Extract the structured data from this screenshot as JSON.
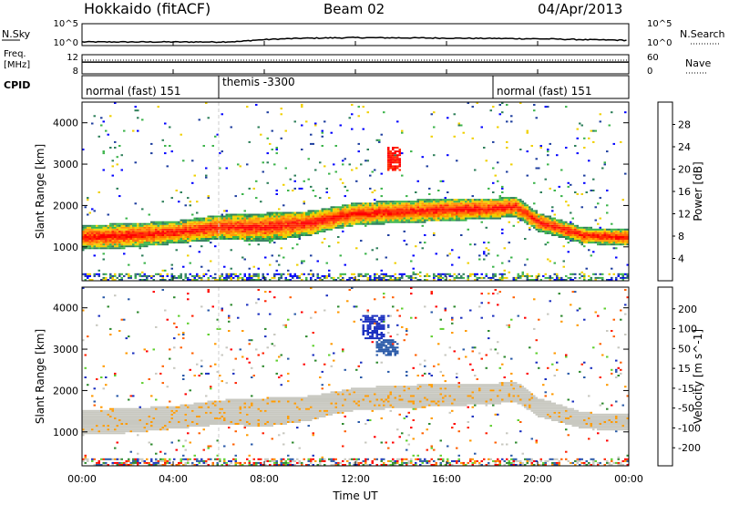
{
  "header": {
    "station": "Hokkaido (fitACF)",
    "beam": "Beam 02",
    "date": "04/Apr/2013"
  },
  "noise_panel": {
    "left_label": "N.Sky",
    "right_label": "N.Search",
    "left_ticks": [
      "10^5",
      "10^0"
    ],
    "right_ticks": [
      "10^5",
      "10^0"
    ]
  },
  "freq_panel": {
    "left_label_line1": "Freq.",
    "left_label_line2": "[MHz]",
    "left_ticks": [
      "12",
      "8"
    ],
    "right_label": "Nave",
    "right_ticks": [
      "60",
      "0"
    ]
  },
  "cpid_panel": {
    "label": "CPID",
    "modes": [
      "normal (fast) 151",
      "themis -3300",
      "normal (fast) 151"
    ]
  },
  "colors": {
    "power_scale": [
      "#0000ff",
      "#1f3f9f",
      "#2e7f5a",
      "#3cb44b",
      "#f0d000",
      "#ff9a00",
      "#ff6a00",
      "#ff2a00",
      "#ff0000"
    ],
    "velocity_scale": [
      "#1a2fbf",
      "#2a5aa8",
      "#2f8a2f",
      "#5fcf2f",
      "#c8c8c0",
      "#c8c8c0",
      "#ff9a00",
      "#ff6000",
      "#ff2000",
      "#ff0000"
    ],
    "ground_scatter": "#c8c8c0"
  },
  "chart_data": [
    {
      "type": "line",
      "title": "N.Sky / N.Search",
      "y_scale": "log",
      "ylim": [
        1,
        100000
      ],
      "xlim_hours": [
        0,
        24
      ],
      "series": [
        {
          "name": "N.Sky",
          "x": [
            0,
            2,
            4,
            6,
            7,
            8,
            10,
            12,
            14,
            16,
            18,
            20,
            22,
            24
          ],
          "y": [
            3,
            3,
            3,
            3,
            4,
            12,
            30,
            40,
            35,
            30,
            25,
            20,
            12,
            8
          ]
        }
      ]
    },
    {
      "type": "line",
      "title": "Freq. / Nave",
      "ylim": [
        8,
        12
      ],
      "xlim_hours": [
        0,
        24
      ],
      "series": [
        {
          "name": "Freq.",
          "x": [
            0,
            24
          ],
          "y": [
            10.5,
            10.5
          ]
        }
      ]
    },
    {
      "type": "heatmap",
      "ylabel": "Slant Range [km]",
      "colorbar_label": "Power [dB]",
      "colorbar_ticks": [
        4,
        8,
        12,
        16,
        20,
        24,
        28
      ],
      "colorbar_range": [
        0,
        32
      ],
      "ylim": [
        180,
        4500
      ],
      "yticks": [
        1000,
        2000,
        3000,
        4000
      ],
      "xlim_hours": [
        0,
        24
      ],
      "echo_band": {
        "x": [
          0,
          2,
          4,
          6,
          8,
          10,
          11,
          12,
          14,
          16,
          18,
          19,
          20,
          22,
          24
        ],
        "lower_km": [
          900,
          950,
          1050,
          1150,
          1100,
          1250,
          1400,
          1500,
          1550,
          1600,
          1650,
          1700,
          1350,
          1050,
          1000
        ],
        "upper_km": [
          1500,
          1550,
          1600,
          1750,
          1800,
          1850,
          1950,
          2050,
          2100,
          2150,
          2150,
          2200,
          1800,
          1450,
          1400
        ]
      },
      "features": [
        {
          "label": "high-power patch",
          "x_hours": [
            13.3,
            13.9
          ],
          "range_km": [
            2800,
            3400
          ]
        }
      ]
    },
    {
      "type": "heatmap",
      "ylabel": "Slant Range [km]",
      "xlabel": "Time UT",
      "colorbar_label": "Velocity [m s^-1]",
      "colorbar_ticks": [
        200,
        100,
        50,
        15,
        -15,
        -50,
        -100,
        -200
      ],
      "colorbar_range": [
        -250,
        250
      ],
      "ylim": [
        180,
        4500
      ],
      "yticks": [
        1000,
        2000,
        3000,
        4000
      ],
      "xticks": [
        "00:00",
        "04:00",
        "08:00",
        "12:00",
        "16:00",
        "20:00",
        "00:00"
      ],
      "xlim_hours": [
        0,
        24
      ],
      "features": [
        {
          "label": "strong positive",
          "x_hours": [
            12.2,
            13.2
          ],
          "range_km": [
            3200,
            3800
          ]
        },
        {
          "label": "positive",
          "x_hours": [
            12.8,
            13.8
          ],
          "range_km": [
            2800,
            3200
          ]
        }
      ]
    }
  ]
}
